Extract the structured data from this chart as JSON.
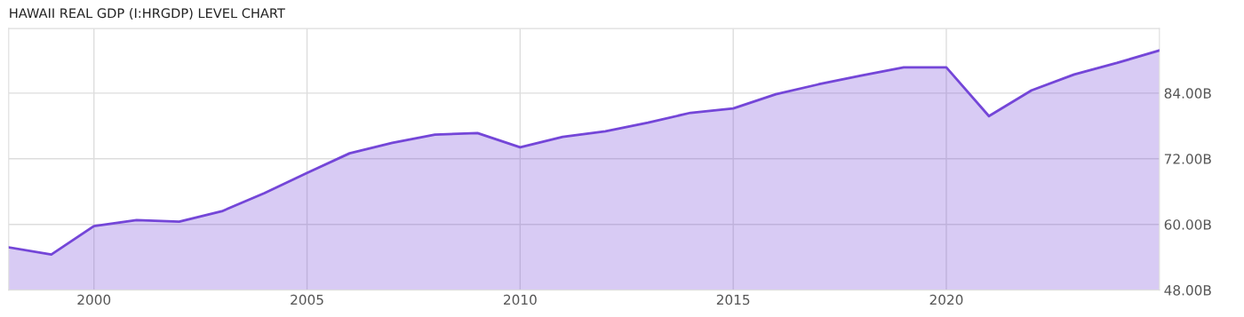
{
  "chart_data": {
    "type": "area",
    "title": "HAWAII REAL GDP (I:HRGDP) LEVEL CHART",
    "x": [
      1998,
      1999,
      2000,
      2001,
      2002,
      2003,
      2004,
      2005,
      2006,
      2007,
      2008,
      2009,
      2010,
      2011,
      2012,
      2013,
      2014,
      2015,
      2016,
      2017,
      2018,
      2019,
      2020,
      2021,
      2022,
      2023,
      2024,
      2025
    ],
    "series": [
      {
        "color": "#7446d8",
        "values": [
          55.8,
          54.5,
          59.7,
          60.8,
          60.5,
          62.4,
          65.7,
          69.4,
          73.0,
          74.9,
          76.4,
          76.7,
          74.1,
          76.0,
          77.0,
          78.6,
          80.4,
          81.2,
          83.8,
          85.6,
          87.2,
          88.7,
          88.7,
          79.8,
          84.5,
          87.4,
          89.5,
          91.8
        ]
      }
    ],
    "xlim": [
      1998,
      2025
    ],
    "xticks": [
      2000,
      2005,
      2010,
      2015,
      2020
    ],
    "ylim": [
      48,
      95.8
    ],
    "yticks": [
      {
        "value": 48,
        "label": "48.00B"
      },
      {
        "value": 60,
        "label": "60.00B"
      },
      {
        "value": 72,
        "label": "72.00B"
      },
      {
        "value": 84,
        "label": "84.00B"
      }
    ],
    "grid": true,
    "marker": "none",
    "line_style": "solid"
  }
}
